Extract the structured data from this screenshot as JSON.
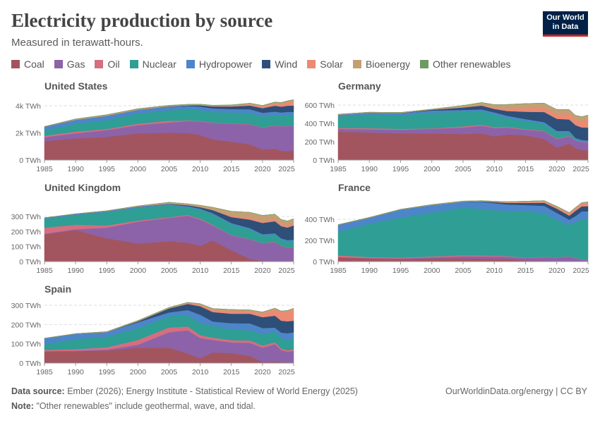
{
  "header": {
    "title": "Electricity production by source",
    "subtitle": "Measured in terawatt-hours.",
    "logo": "Our World in Data"
  },
  "legend": [
    {
      "label": "Coal",
      "color": "#a2555f"
    },
    {
      "label": "Gas",
      "color": "#8c63a8"
    },
    {
      "label": "Oil",
      "color": "#d56e80"
    },
    {
      "label": "Nuclear",
      "color": "#2f9e94"
    },
    {
      "label": "Hydropower",
      "color": "#4c86c9"
    },
    {
      "label": "Wind",
      "color": "#2e4f78"
    },
    {
      "label": "Solar",
      "color": "#ec8a74"
    },
    {
      "label": "Bioenergy",
      "color": "#c2a074"
    },
    {
      "label": "Other renewables",
      "color": "#6d9a62"
    }
  ],
  "footer": {
    "source_label": "Data source:",
    "source": "Ember (2026); Energy Institute - Statistical Review of World Energy (2025)",
    "note_label": "Note:",
    "note": "\"Other renewables\" include geothermal, wave, and tidal.",
    "credit": "OurWorldinData.org/energy | CC BY"
  },
  "chart_data": [
    {
      "type": "area",
      "stacked": true,
      "title": "United States",
      "unit": "TWh",
      "xlim": [
        1985,
        2025
      ],
      "xticks": [
        "1985",
        "1990",
        "1995",
        "2000",
        "2005",
        "2010",
        "2015",
        "2020",
        "2025"
      ],
      "yticks": [
        "0 TWh",
        "2k TWh",
        "4k TWh"
      ],
      "ytick_values": [
        0,
        2000,
        4000
      ],
      "grid": true,
      "x": [
        1985,
        1990,
        1995,
        2000,
        2005,
        2008,
        2010,
        2012,
        2015,
        2018,
        2020,
        2022,
        2023,
        2024,
        2025
      ],
      "series": [
        {
          "name": "Coal",
          "values": [
            1400,
            1590,
            1710,
            1970,
            2010,
            1990,
            1850,
            1510,
            1350,
            1150,
            770,
            830,
            675,
            650,
            700
          ]
        },
        {
          "name": "Gas",
          "values": [
            290,
            380,
            500,
            600,
            760,
            880,
            990,
            1230,
            1330,
            1470,
            1620,
            1690,
            1800,
            1860,
            1800
          ]
        },
        {
          "name": "Oil",
          "values": [
            100,
            125,
            75,
            110,
            120,
            46,
            37,
            23,
            28,
            25,
            17,
            23,
            16,
            16,
            16
          ]
        },
        {
          "name": "Nuclear",
          "values": [
            380,
            580,
            670,
            750,
            780,
            806,
            807,
            769,
            797,
            807,
            790,
            772,
            775,
            782,
            785
          ]
        },
        {
          "name": "Hydropower",
          "values": [
            280,
            290,
            310,
            270,
            270,
            255,
            260,
            276,
            250,
            290,
            285,
            255,
            240,
            240,
            245
          ]
        },
        {
          "name": "Wind",
          "values": [
            0,
            3,
            3,
            6,
            18,
            55,
            95,
            141,
            191,
            275,
            340,
            435,
            425,
            450,
            470
          ]
        },
        {
          "name": "Solar",
          "values": [
            0,
            0,
            0,
            0,
            1,
            2,
            4,
            12,
            39,
            95,
            132,
            205,
            240,
            300,
            370
          ]
        },
        {
          "name": "Bioenergy",
          "values": [
            20,
            50,
            60,
            65,
            60,
            60,
            60,
            60,
            64,
            63,
            56,
            52,
            48,
            47,
            47
          ]
        },
        {
          "name": "Other renewables",
          "values": [
            10,
            16,
            16,
            15,
            17,
            17,
            17,
            18,
            19,
            19,
            18,
            18,
            18,
            18,
            18
          ]
        }
      ]
    },
    {
      "type": "area",
      "stacked": true,
      "title": "Germany",
      "unit": "TWh",
      "xlim": [
        1985,
        2025
      ],
      "xticks": [
        "1985",
        "1990",
        "1995",
        "2000",
        "2005",
        "2010",
        "2015",
        "2020",
        "2025"
      ],
      "yticks": [
        "0 TWh",
        "200 TWh",
        "400 TWh",
        "600 TWh"
      ],
      "ytick_values": [
        0,
        200,
        400,
        600
      ],
      "grid": true,
      "x": [
        1985,
        1990,
        1995,
        2000,
        2005,
        2008,
        2010,
        2012,
        2015,
        2018,
        2020,
        2022,
        2023,
        2024,
        2025
      ],
      "series": [
        {
          "name": "Coal",
          "values": [
            310,
            300,
            290,
            290,
            285,
            290,
            260,
            280,
            270,
            230,
            135,
            180,
            130,
            110,
            105
          ]
        },
        {
          "name": "Gas",
          "values": [
            30,
            35,
            40,
            50,
            70,
            85,
            90,
            75,
            60,
            85,
            95,
            80,
            80,
            85,
            85
          ]
        },
        {
          "name": "Oil",
          "values": [
            10,
            12,
            10,
            5,
            12,
            10,
            9,
            8,
            6,
            5,
            5,
            5,
            4,
            4,
            4
          ]
        },
        {
          "name": "Nuclear",
          "values": [
            125,
            150,
            150,
            170,
            160,
            148,
            140,
            99,
            92,
            76,
            64,
            35,
            7,
            0,
            0
          ]
        },
        {
          "name": "Hydropower",
          "values": [
            20,
            20,
            22,
            25,
            20,
            20,
            21,
            22,
            19,
            18,
            19,
            17,
            20,
            21,
            20
          ]
        },
        {
          "name": "Wind",
          "values": [
            0,
            0,
            2,
            10,
            27,
            41,
            38,
            51,
            80,
            110,
            132,
            125,
            140,
            136,
            140
          ]
        },
        {
          "name": "Solar",
          "values": [
            0,
            0,
            0,
            0,
            1,
            4,
            12,
            26,
            39,
            46,
            50,
            60,
            62,
            72,
            90
          ]
        },
        {
          "name": "Bioenergy",
          "values": [
            5,
            5,
            5,
            5,
            20,
            30,
            35,
            45,
            50,
            51,
            51,
            48,
            45,
            45,
            46
          ]
        },
        {
          "name": "Other renewables",
          "values": [
            0,
            0,
            0,
            0,
            0,
            0,
            0,
            0,
            0,
            0,
            0,
            0,
            0,
            0,
            0
          ]
        }
      ]
    },
    {
      "type": "area",
      "stacked": true,
      "title": "United Kingdom",
      "unit": "TWh",
      "xlim": [
        1985,
        2025
      ],
      "xticks": [
        "1985",
        "1990",
        "1995",
        "2000",
        "2005",
        "2010",
        "2015",
        "2020",
        "2025"
      ],
      "yticks": [
        "0 TWh",
        "100 TWh",
        "200 TWh",
        "300 TWh"
      ],
      "ytick_values": [
        0,
        100,
        200,
        300
      ],
      "grid": true,
      "x": [
        1985,
        1990,
        1995,
        2000,
        2005,
        2008,
        2010,
        2012,
        2015,
        2018,
        2020,
        2022,
        2023,
        2024,
        2025
      ],
      "series": [
        {
          "name": "Coal",
          "values": [
            180,
            210,
            155,
            120,
            135,
            125,
            105,
            140,
            75,
            17,
            6,
            5,
            3,
            2,
            0
          ]
        },
        {
          "name": "Gas",
          "values": [
            5,
            5,
            70,
            145,
            155,
            180,
            175,
            100,
            100,
            130,
            115,
            125,
            100,
            90,
            95
          ]
        },
        {
          "name": "Oil",
          "values": [
            40,
            30,
            15,
            8,
            5,
            6,
            5,
            4,
            2,
            2,
            2,
            2,
            2,
            2,
            2
          ]
        },
        {
          "name": "Nuclear",
          "values": [
            60,
            65,
            90,
            85,
            80,
            50,
            62,
            70,
            70,
            65,
            50,
            48,
            41,
            41,
            40
          ]
        },
        {
          "name": "Hydropower",
          "values": [
            6,
            7,
            6,
            7,
            7,
            7,
            5,
            8,
            9,
            8,
            9,
            8,
            8,
            8,
            8
          ]
        },
        {
          "name": "Wind",
          "values": [
            0,
            0,
            0,
            1,
            3,
            7,
            10,
            20,
            40,
            57,
            75,
            80,
            82,
            83,
            95
          ]
        },
        {
          "name": "Solar",
          "values": [
            0,
            0,
            0,
            0,
            0,
            0,
            0,
            1,
            8,
            13,
            13,
            13,
            14,
            14,
            15
          ]
        },
        {
          "name": "Bioenergy",
          "values": [
            0,
            1,
            2,
            4,
            9,
            9,
            12,
            18,
            30,
            35,
            37,
            34,
            30,
            30,
            30
          ]
        },
        {
          "name": "Other renewables",
          "values": [
            0,
            0,
            0,
            0,
            0,
            0,
            0,
            0,
            0,
            0,
            0,
            0,
            0,
            0,
            0
          ]
        }
      ]
    },
    {
      "type": "area",
      "stacked": true,
      "title": "France",
      "unit": "TWh",
      "xlim": [
        1985,
        2025
      ],
      "xticks": [
        "1985",
        "1990",
        "1995",
        "2000",
        "2005",
        "2010",
        "2015",
        "2020",
        "2025"
      ],
      "yticks": [
        "0 TWh",
        "200 TWh",
        "400 TWh"
      ],
      "ytick_values": [
        0,
        200,
        400
      ],
      "grid": true,
      "x": [
        1985,
        1990,
        1995,
        2000,
        2005,
        2008,
        2010,
        2012,
        2015,
        2018,
        2020,
        2022,
        2023,
        2024,
        2025
      ],
      "series": [
        {
          "name": "Coal",
          "values": [
            40,
            30,
            25,
            30,
            30,
            27,
            26,
            24,
            12,
            10,
            3,
            3,
            1,
            1,
            1
          ]
        },
        {
          "name": "Gas",
          "values": [
            3,
            3,
            5,
            10,
            20,
            22,
            23,
            22,
            22,
            31,
            35,
            44,
            30,
            18,
            17
          ]
        },
        {
          "name": "Oil",
          "values": [
            15,
            10,
            8,
            8,
            9,
            8,
            7,
            6,
            4,
            4,
            3,
            4,
            3,
            3,
            3
          ]
        },
        {
          "name": "Nuclear",
          "values": [
            224,
            314,
            377,
            415,
            451,
            439,
            429,
            425,
            437,
            413,
            354,
            295,
            338,
            378,
            385
          ]
        },
        {
          "name": "Hydropower",
          "values": [
            65,
            58,
            77,
            72,
            56,
            68,
            68,
            63,
            59,
            69,
            65,
            50,
            58,
            75,
            70
          ]
        },
        {
          "name": "Wind",
          "values": [
            0,
            0,
            0,
            0,
            1,
            6,
            10,
            15,
            21,
            29,
            40,
            38,
            50,
            47,
            48
          ]
        },
        {
          "name": "Solar",
          "values": [
            0,
            0,
            0,
            0,
            0,
            0,
            1,
            4,
            7,
            10,
            13,
            20,
            22,
            25,
            30
          ]
        },
        {
          "name": "Bioenergy",
          "values": [
            2,
            3,
            3,
            4,
            5,
            6,
            7,
            7,
            9,
            10,
            10,
            10,
            10,
            10,
            10
          ]
        },
        {
          "name": "Other renewables",
          "values": [
            0,
            0,
            0,
            0,
            0,
            0,
            0,
            0,
            0,
            0,
            0,
            0,
            0,
            0,
            0
          ]
        }
      ]
    },
    {
      "type": "area",
      "stacked": true,
      "title": "Spain",
      "unit": "TWh",
      "xlim": [
        1985,
        2025
      ],
      "xticks": [
        "1985",
        "1990",
        "1995",
        "2000",
        "2005",
        "2010",
        "2015",
        "2020",
        "2025"
      ],
      "yticks": [
        "0 TWh",
        "100 TWh",
        "200 TWh",
        "300 TWh"
      ],
      "ytick_values": [
        0,
        100,
        200,
        300
      ],
      "grid": true,
      "x": [
        1985,
        1990,
        1995,
        2000,
        2005,
        2008,
        2010,
        2012,
        2015,
        2018,
        2020,
        2022,
        2023,
        2024,
        2025
      ],
      "series": [
        {
          "name": "Coal",
          "values": [
            60,
            62,
            65,
            80,
            80,
            50,
            25,
            55,
            52,
            37,
            5,
            8,
            5,
            4,
            3
          ]
        },
        {
          "name": "Gas",
          "values": [
            2,
            2,
            5,
            15,
            80,
            120,
            105,
            65,
            55,
            68,
            75,
            90,
            62,
            55,
            60
          ]
        },
        {
          "name": "Oil",
          "values": [
            6,
            8,
            12,
            25,
            25,
            20,
            15,
            12,
            12,
            12,
            11,
            10,
            9,
            8,
            8
          ]
        },
        {
          "name": "Nuclear",
          "values": [
            28,
            54,
            55,
            62,
            58,
            59,
            62,
            61,
            57,
            53,
            58,
            56,
            54,
            52,
            55
          ]
        },
        {
          "name": "Hydropower",
          "values": [
            32,
            26,
            24,
            30,
            20,
            26,
            44,
            23,
            31,
            36,
            33,
            20,
            28,
            36,
            34
          ]
        },
        {
          "name": "Wind",
          "values": [
            0,
            0,
            0,
            5,
            21,
            32,
            44,
            49,
            49,
            50,
            56,
            62,
            62,
            62,
            60
          ]
        },
        {
          "name": "Solar",
          "values": [
            0,
            0,
            0,
            0,
            0,
            3,
            7,
            11,
            14,
            13,
            20,
            33,
            44,
            50,
            58
          ]
        },
        {
          "name": "Bioenergy",
          "values": [
            1,
            1,
            2,
            4,
            5,
            5,
            6,
            7,
            8,
            7,
            7,
            6,
            6,
            6,
            6
          ]
        },
        {
          "name": "Other renewables",
          "values": [
            0,
            0,
            0,
            0,
            0,
            0,
            0,
            0,
            0,
            0,
            0,
            0,
            0,
            0,
            0
          ]
        }
      ]
    }
  ]
}
